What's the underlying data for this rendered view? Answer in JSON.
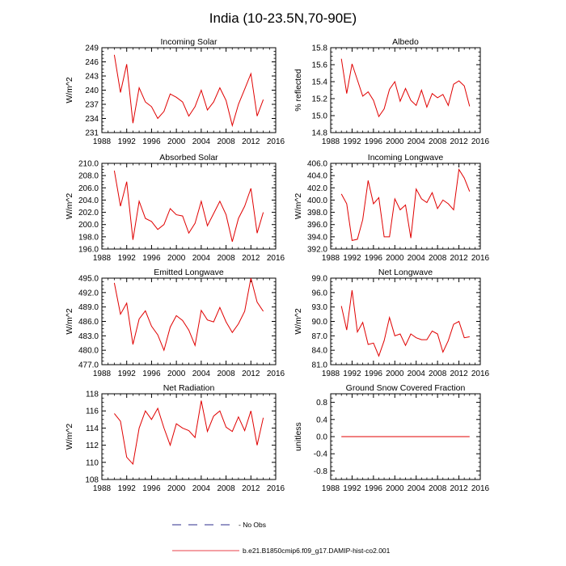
{
  "figure": {
    "title": "India (10-23.5N,70-90E)",
    "legend": [
      {
        "label": "- No Obs",
        "color": "#2c2c8c",
        "dash": true
      },
      {
        "label": "b.e21.B1850cmip6.f09_g17.DAMIP-hist-co2.001",
        "color": "#e8404a",
        "dash": false
      }
    ],
    "series_color": "#e00000"
  },
  "chart_data": [
    {
      "type": "line",
      "title": "Incoming Solar",
      "ylabel": "W/m^2",
      "xlim": [
        1988,
        2016
      ],
      "xticks": [
        1988,
        1992,
        1996,
        2000,
        2004,
        2008,
        2012,
        2016
      ],
      "ylim": [
        231,
        249
      ],
      "yticks": [
        231,
        234,
        237,
        240,
        243,
        246,
        249
      ],
      "ytick_labels": [
        "231",
        "234",
        "237",
        "240",
        "243",
        "246",
        "249"
      ],
      "x": [
        1990,
        1991,
        1992,
        1993,
        1994,
        1995,
        1996,
        1997,
        1998,
        1999,
        2000,
        2001,
        2002,
        2003,
        2004,
        2005,
        2006,
        2007,
        2008,
        2009,
        2010,
        2011,
        2012,
        2013,
        2014
      ],
      "series": [
        {
          "values": [
            247.5,
            239.5,
            245.5,
            233.0,
            240.5,
            237.5,
            236.5,
            234.0,
            235.5,
            239.2,
            238.5,
            237.5,
            234.5,
            236.5,
            240.0,
            235.8,
            237.5,
            240.5,
            237.8,
            232.5,
            237.0,
            240.2,
            243.5,
            234.5,
            238.0
          ]
        }
      ]
    },
    {
      "type": "line",
      "title": "Albedo",
      "ylabel": "% reflected",
      "xlim": [
        1988,
        2016
      ],
      "xticks": [
        1988,
        1992,
        1996,
        2000,
        2004,
        2008,
        2012,
        2016
      ],
      "ylim": [
        14.8,
        15.8
      ],
      "yticks": [
        14.8,
        15.0,
        15.2,
        15.4,
        15.6,
        15.8
      ],
      "ytick_labels": [
        "14.8",
        "15.0",
        "15.2",
        "15.4",
        "15.6",
        "15.8"
      ],
      "x": [
        1990,
        1991,
        1992,
        1993,
        1994,
        1995,
        1996,
        1997,
        1998,
        1999,
        2000,
        2001,
        2002,
        2003,
        2004,
        2005,
        2006,
        2007,
        2008,
        2009,
        2010,
        2011,
        2012,
        2013,
        2014
      ],
      "series": [
        {
          "values": [
            15.67,
            15.26,
            15.61,
            15.42,
            15.23,
            15.28,
            15.18,
            14.99,
            15.08,
            15.31,
            15.4,
            15.17,
            15.32,
            15.18,
            15.12,
            15.3,
            15.1,
            15.26,
            15.21,
            15.25,
            15.12,
            15.37,
            15.41,
            15.35,
            15.11
          ]
        }
      ]
    },
    {
      "type": "line",
      "title": "Absorbed Solar",
      "ylabel": "W/m^2",
      "xlim": [
        1988,
        2016
      ],
      "xticks": [
        1988,
        1992,
        1996,
        2000,
        2004,
        2008,
        2012,
        2016
      ],
      "ylim": [
        196.0,
        210.0
      ],
      "yticks": [
        196,
        198,
        200,
        202,
        204,
        206,
        208,
        210
      ],
      "ytick_labels": [
        "196.0",
        "198.0",
        "200.0",
        "202.0",
        "204.0",
        "206.0",
        "208.0",
        "210.0"
      ],
      "x": [
        1990,
        1991,
        1992,
        1993,
        1994,
        1995,
        1996,
        1997,
        1998,
        1999,
        2000,
        2001,
        2002,
        2003,
        2004,
        2005,
        2006,
        2007,
        2008,
        2009,
        2010,
        2011,
        2012,
        2013,
        2014
      ],
      "series": [
        {
          "values": [
            208.8,
            203.0,
            207.0,
            197.5,
            203.8,
            201.0,
            200.5,
            199.2,
            200.0,
            202.6,
            201.6,
            201.4,
            198.6,
            200.2,
            203.8,
            199.8,
            201.8,
            203.8,
            201.6,
            197.2,
            201.0,
            203.0,
            205.9,
            198.6,
            202.0
          ]
        }
      ]
    },
    {
      "type": "line",
      "title": "Incoming Longwave",
      "ylabel": "W/m^2",
      "xlim": [
        1988,
        2016
      ],
      "xticks": [
        1988,
        1992,
        1996,
        2000,
        2004,
        2008,
        2012,
        2016
      ],
      "ylim": [
        392.0,
        406.0
      ],
      "yticks": [
        392,
        394,
        396,
        398,
        400,
        402,
        404,
        406
      ],
      "ytick_labels": [
        "392.0",
        "394.0",
        "396.0",
        "398.0",
        "400.0",
        "402.0",
        "404.0",
        "406.0"
      ],
      "x": [
        1990,
        1991,
        1992,
        1993,
        1994,
        1995,
        1996,
        1997,
        1998,
        1999,
        2000,
        2001,
        2002,
        2003,
        2004,
        2005,
        2006,
        2007,
        2008,
        2009,
        2010,
        2011,
        2012,
        2013,
        2014
      ],
      "series": [
        {
          "values": [
            401.0,
            399.4,
            393.4,
            393.6,
            396.8,
            403.2,
            399.4,
            400.4,
            394.0,
            394.0,
            400.2,
            398.4,
            399.2,
            393.8,
            401.8,
            400.2,
            399.6,
            401.2,
            398.6,
            400.0,
            399.4,
            398.4,
            405.0,
            403.6,
            401.4
          ]
        }
      ]
    },
    {
      "type": "line",
      "title": "Emitted Longwave",
      "ylabel": "W/m^2",
      "xlim": [
        1988,
        2016
      ],
      "xticks": [
        1988,
        1992,
        1996,
        2000,
        2004,
        2008,
        2012,
        2016
      ],
      "ylim": [
        477.0,
        495.0
      ],
      "yticks": [
        477,
        480,
        483,
        486,
        489,
        492,
        495
      ],
      "ytick_labels": [
        "477.0",
        "480.0",
        "483.0",
        "486.0",
        "489.0",
        "492.0",
        "495.0"
      ],
      "x": [
        1990,
        1991,
        1992,
        1993,
        1994,
        1995,
        1996,
        1997,
        1998,
        1999,
        2000,
        2001,
        2002,
        2003,
        2004,
        2005,
        2006,
        2007,
        2008,
        2009,
        2010,
        2011,
        2012,
        2013,
        2014
      ],
      "series": [
        {
          "values": [
            494.0,
            487.5,
            489.8,
            481.2,
            486.5,
            488.2,
            485.0,
            483.2,
            480.0,
            484.8,
            487.2,
            486.2,
            484.2,
            481.0,
            488.3,
            486.3,
            485.9,
            488.9,
            485.9,
            483.7,
            485.5,
            488.1,
            495.0,
            490.0,
            488.1
          ]
        }
      ]
    },
    {
      "type": "line",
      "title": "Net Longwave",
      "ylabel": "W/m^2",
      "xlim": [
        1988,
        2016
      ],
      "xticks": [
        1988,
        1992,
        1996,
        2000,
        2004,
        2008,
        2012,
        2016
      ],
      "ylim": [
        81.0,
        99.0
      ],
      "yticks": [
        81,
        84,
        87,
        90,
        93,
        96,
        99
      ],
      "ytick_labels": [
        "81.0",
        "84.0",
        "87.0",
        "90.0",
        "93.0",
        "96.0",
        "99.0"
      ],
      "x": [
        1990,
        1991,
        1992,
        1993,
        1994,
        1995,
        1996,
        1997,
        1998,
        1999,
        2000,
        2001,
        2002,
        2003,
        2004,
        2005,
        2006,
        2007,
        2008,
        2009,
        2010,
        2011,
        2012,
        2013,
        2014
      ],
      "series": [
        {
          "values": [
            93.2,
            88.2,
            96.5,
            87.8,
            89.8,
            85.2,
            85.5,
            82.8,
            86.0,
            90.8,
            87.0,
            87.4,
            85.0,
            87.4,
            86.6,
            86.2,
            86.2,
            88.0,
            87.4,
            83.6,
            86.0,
            89.4,
            90.0,
            86.6,
            86.8
          ]
        }
      ]
    },
    {
      "type": "line",
      "title": "Net Radiation",
      "ylabel": "W/m^2",
      "xlim": [
        1988,
        2016
      ],
      "xticks": [
        1988,
        1992,
        1996,
        2000,
        2004,
        2008,
        2012,
        2016
      ],
      "ylim": [
        108,
        118
      ],
      "yticks": [
        108,
        110,
        112,
        114,
        116,
        118
      ],
      "ytick_labels": [
        "108",
        "110",
        "112",
        "114",
        "116",
        "118"
      ],
      "x": [
        1990,
        1991,
        1992,
        1993,
        1994,
        1995,
        1996,
        1997,
        1998,
        1999,
        2000,
        2001,
        2002,
        2003,
        2004,
        2005,
        2006,
        2007,
        2008,
        2009,
        2010,
        2011,
        2012,
        2013,
        2014
      ],
      "series": [
        {
          "values": [
            115.7,
            114.8,
            110.6,
            109.8,
            114.0,
            116.0,
            115.0,
            116.3,
            114.0,
            112.0,
            114.5,
            114.0,
            113.7,
            112.9,
            117.2,
            113.6,
            115.4,
            116.0,
            114.1,
            113.6,
            115.3,
            113.7,
            116.0,
            112.0,
            115.2
          ]
        }
      ]
    },
    {
      "type": "line",
      "title": "Ground Snow Covered Fraction",
      "ylabel": "unitless",
      "xlim": [
        1988,
        2016
      ],
      "xticks": [
        1988,
        1992,
        1996,
        2000,
        2004,
        2008,
        2012,
        2016
      ],
      "ylim": [
        -1.0,
        1.0
      ],
      "yticks": [
        -0.8,
        -0.4,
        0.0,
        0.4,
        0.8
      ],
      "ytick_labels": [
        "-0.8",
        "-0.4",
        "0.0",
        "0.4",
        "0.8"
      ],
      "x": [
        1990,
        1991,
        1992,
        1993,
        1994,
        1995,
        1996,
        1997,
        1998,
        1999,
        2000,
        2001,
        2002,
        2003,
        2004,
        2005,
        2006,
        2007,
        2008,
        2009,
        2010,
        2011,
        2012,
        2013,
        2014
      ],
      "series": [
        {
          "values": [
            0,
            0,
            0,
            0,
            0,
            0,
            0,
            0,
            0,
            0,
            0,
            0,
            0,
            0,
            0,
            0,
            0,
            0,
            0,
            0,
            0,
            0,
            0,
            0,
            0
          ]
        }
      ]
    }
  ]
}
